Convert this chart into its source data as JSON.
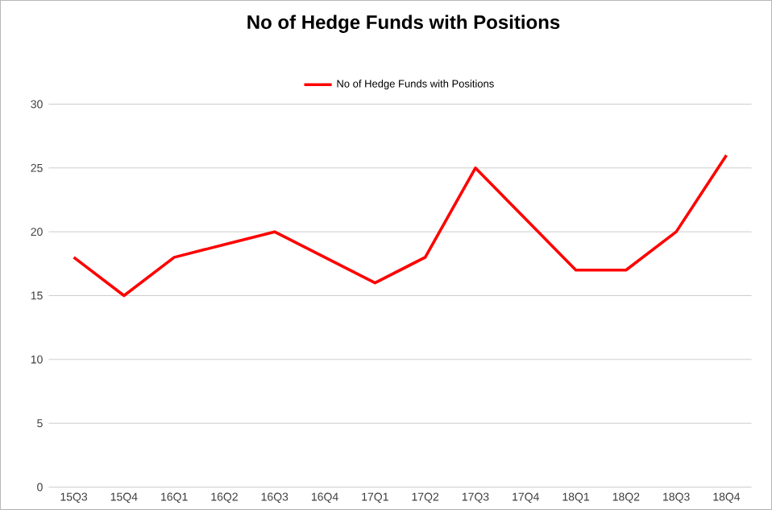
{
  "chart_data": {
    "type": "line",
    "title": "No of Hedge Funds with Positions",
    "categories": [
      "15Q3",
      "15Q4",
      "16Q1",
      "16Q2",
      "16Q3",
      "16Q4",
      "17Q1",
      "17Q2",
      "17Q3",
      "17Q4",
      "18Q1",
      "18Q2",
      "18Q3",
      "18Q4"
    ],
    "series": [
      {
        "name": "No of Hedge Funds with Positions",
        "color": "#ff0000",
        "values": [
          18,
          15,
          18,
          19,
          20,
          18,
          16,
          18,
          25,
          21,
          17,
          17,
          20,
          26
        ]
      }
    ],
    "ylim": [
      0,
      30
    ],
    "yticks": [
      0,
      5,
      10,
      15,
      20,
      25,
      30
    ],
    "grid": "y",
    "legend": "top",
    "marker": "none",
    "line_style": "solid"
  }
}
